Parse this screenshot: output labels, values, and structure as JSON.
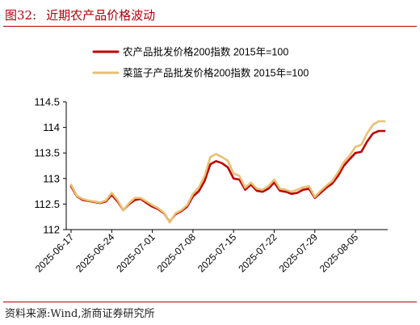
{
  "figure": {
    "label": "图32:",
    "title": "近期农产品价格波动",
    "source": "资料来源:Wind,浙商证券研究所"
  },
  "chart_data": {
    "type": "line",
    "title": "",
    "xlabel": "",
    "ylabel": "",
    "ylim": [
      112,
      114.5
    ],
    "yticks": [
      112,
      112.5,
      113,
      113.5,
      114,
      114.5
    ],
    "xlim": [
      "2025-06-17",
      "2025-08-10"
    ],
    "xticks": [
      "2025-06-17",
      "2025-06-24",
      "2025-07-01",
      "2025-07-08",
      "2025-07-15",
      "2025-07-22",
      "2025-07-29",
      "2025-08-05"
    ],
    "grid": false,
    "legend_position": "top",
    "series": [
      {
        "name": "农产品批发价格200指数 2015年=100",
        "color": "#c00000",
        "points": [
          [
            "2025-06-17",
            112.85
          ],
          [
            "2025-06-18",
            112.65
          ],
          [
            "2025-06-19",
            112.58
          ],
          [
            "2025-06-20",
            112.56
          ],
          [
            "2025-06-21",
            112.54
          ],
          [
            "2025-06-22",
            112.52
          ],
          [
            "2025-06-23",
            112.55
          ],
          [
            "2025-06-24",
            112.68
          ],
          [
            "2025-06-25",
            112.55
          ],
          [
            "2025-06-26",
            112.38
          ],
          [
            "2025-06-27",
            112.5
          ],
          [
            "2025-06-28",
            112.58
          ],
          [
            "2025-06-29",
            112.6
          ],
          [
            "2025-06-30",
            112.52
          ],
          [
            "2025-07-01",
            112.45
          ],
          [
            "2025-07-02",
            112.4
          ],
          [
            "2025-07-03",
            112.32
          ],
          [
            "2025-07-04",
            112.15
          ],
          [
            "2025-07-05",
            112.3
          ],
          [
            "2025-07-06",
            112.36
          ],
          [
            "2025-07-07",
            112.45
          ],
          [
            "2025-07-08",
            112.65
          ],
          [
            "2025-07-09",
            112.75
          ],
          [
            "2025-07-10",
            112.95
          ],
          [
            "2025-07-11",
            113.28
          ],
          [
            "2025-07-12",
            113.34
          ],
          [
            "2025-07-13",
            113.3
          ],
          [
            "2025-07-14",
            113.22
          ],
          [
            "2025-07-15",
            113.0
          ],
          [
            "2025-07-16",
            112.98
          ],
          [
            "2025-07-17",
            112.78
          ],
          [
            "2025-07-18",
            112.88
          ],
          [
            "2025-07-19",
            112.76
          ],
          [
            "2025-07-20",
            112.74
          ],
          [
            "2025-07-21",
            112.8
          ],
          [
            "2025-07-22",
            112.92
          ],
          [
            "2025-07-23",
            112.76
          ],
          [
            "2025-07-24",
            112.74
          ],
          [
            "2025-07-25",
            112.7
          ],
          [
            "2025-07-26",
            112.72
          ],
          [
            "2025-07-27",
            112.78
          ],
          [
            "2025-07-28",
            112.8
          ],
          [
            "2025-07-29",
            112.62
          ],
          [
            "2025-07-30",
            112.72
          ],
          [
            "2025-07-31",
            112.82
          ],
          [
            "2025-08-01",
            112.9
          ],
          [
            "2025-08-02",
            113.05
          ],
          [
            "2025-08-03",
            113.25
          ],
          [
            "2025-08-04",
            113.38
          ],
          [
            "2025-08-05",
            113.5
          ],
          [
            "2025-08-06",
            113.52
          ],
          [
            "2025-08-07",
            113.72
          ],
          [
            "2025-08-08",
            113.88
          ],
          [
            "2025-08-09",
            113.93
          ],
          [
            "2025-08-10",
            113.93
          ]
        ]
      },
      {
        "name": "菜篮子产品批发价格200指数 2015年=100",
        "color": "#e8c074",
        "points": [
          [
            "2025-06-17",
            112.88
          ],
          [
            "2025-06-18",
            112.66
          ],
          [
            "2025-06-19",
            112.6
          ],
          [
            "2025-06-20",
            112.57
          ],
          [
            "2025-06-21",
            112.55
          ],
          [
            "2025-06-22",
            112.53
          ],
          [
            "2025-06-23",
            112.57
          ],
          [
            "2025-06-24",
            112.72
          ],
          [
            "2025-06-25",
            112.58
          ],
          [
            "2025-06-26",
            112.38
          ],
          [
            "2025-06-27",
            112.52
          ],
          [
            "2025-06-28",
            112.62
          ],
          [
            "2025-06-29",
            112.62
          ],
          [
            "2025-06-30",
            112.55
          ],
          [
            "2025-07-01",
            112.48
          ],
          [
            "2025-07-02",
            112.42
          ],
          [
            "2025-07-03",
            112.33
          ],
          [
            "2025-07-04",
            112.14
          ],
          [
            "2025-07-05",
            112.32
          ],
          [
            "2025-07-06",
            112.38
          ],
          [
            "2025-07-07",
            112.48
          ],
          [
            "2025-07-08",
            112.7
          ],
          [
            "2025-07-09",
            112.82
          ],
          [
            "2025-07-10",
            113.05
          ],
          [
            "2025-07-11",
            113.42
          ],
          [
            "2025-07-12",
            113.48
          ],
          [
            "2025-07-13",
            113.42
          ],
          [
            "2025-07-14",
            113.35
          ],
          [
            "2025-07-15",
            113.1
          ],
          [
            "2025-07-16",
            113.05
          ],
          [
            "2025-07-17",
            112.82
          ],
          [
            "2025-07-18",
            112.92
          ],
          [
            "2025-07-19",
            112.8
          ],
          [
            "2025-07-20",
            112.78
          ],
          [
            "2025-07-21",
            112.85
          ],
          [
            "2025-07-22",
            112.98
          ],
          [
            "2025-07-23",
            112.8
          ],
          [
            "2025-07-24",
            112.78
          ],
          [
            "2025-07-25",
            112.74
          ],
          [
            "2025-07-26",
            112.78
          ],
          [
            "2025-07-27",
            112.83
          ],
          [
            "2025-07-28",
            112.85
          ],
          [
            "2025-07-29",
            112.64
          ],
          [
            "2025-07-30",
            112.76
          ],
          [
            "2025-07-31",
            112.86
          ],
          [
            "2025-08-01",
            112.95
          ],
          [
            "2025-08-02",
            113.12
          ],
          [
            "2025-08-03",
            113.32
          ],
          [
            "2025-08-04",
            113.45
          ],
          [
            "2025-08-05",
            113.62
          ],
          [
            "2025-08-06",
            113.66
          ],
          [
            "2025-08-07",
            113.88
          ],
          [
            "2025-08-08",
            114.05
          ],
          [
            "2025-08-09",
            114.12
          ],
          [
            "2025-08-10",
            114.12
          ]
        ]
      }
    ]
  }
}
